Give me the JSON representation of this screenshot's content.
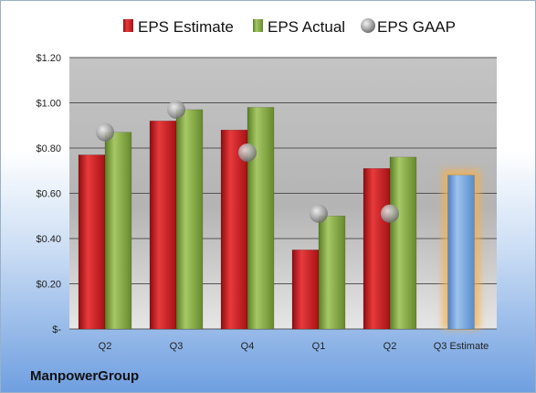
{
  "chart_data": {
    "type": "bar",
    "categories": [
      "Q2",
      "Q3",
      "Q4",
      "Q1",
      "Q2",
      "Q3 Estimate"
    ],
    "series": [
      {
        "name": "EPS Estimate",
        "kind": "bar",
        "color": "#c8191c",
        "values": [
          0.77,
          0.92,
          0.88,
          0.35,
          0.71,
          null
        ]
      },
      {
        "name": "EPS Actual",
        "kind": "bar",
        "color": "#7da23c",
        "values": [
          0.87,
          0.97,
          0.98,
          0.5,
          0.76,
          null
        ]
      },
      {
        "name": "EPS GAAP",
        "kind": "marker",
        "color": "#b8b8b8",
        "values": [
          0.87,
          0.97,
          0.78,
          0.51,
          0.51,
          null
        ]
      }
    ],
    "estimate": {
      "category": "Q3 Estimate",
      "value": 0.68,
      "color": "#6f9fd8",
      "glow_color": "#f6b04a"
    },
    "ylim": [
      0,
      1.2
    ],
    "yticks": [
      {
        "value": 0,
        "label": "$-"
      },
      {
        "value": 0.2,
        "label": "$0.20"
      },
      {
        "value": 0.4,
        "label": "$0.40"
      },
      {
        "value": 0.6,
        "label": "$0.60"
      },
      {
        "value": 0.8,
        "label": "$0.80"
      },
      {
        "value": 1.0,
        "label": "$1.00"
      },
      {
        "value": 1.2,
        "label": "$1.20"
      }
    ],
    "grid": true,
    "legend_position": "top",
    "title": "",
    "xlabel": "",
    "ylabel": ""
  },
  "brand": "ManpowerGroup"
}
